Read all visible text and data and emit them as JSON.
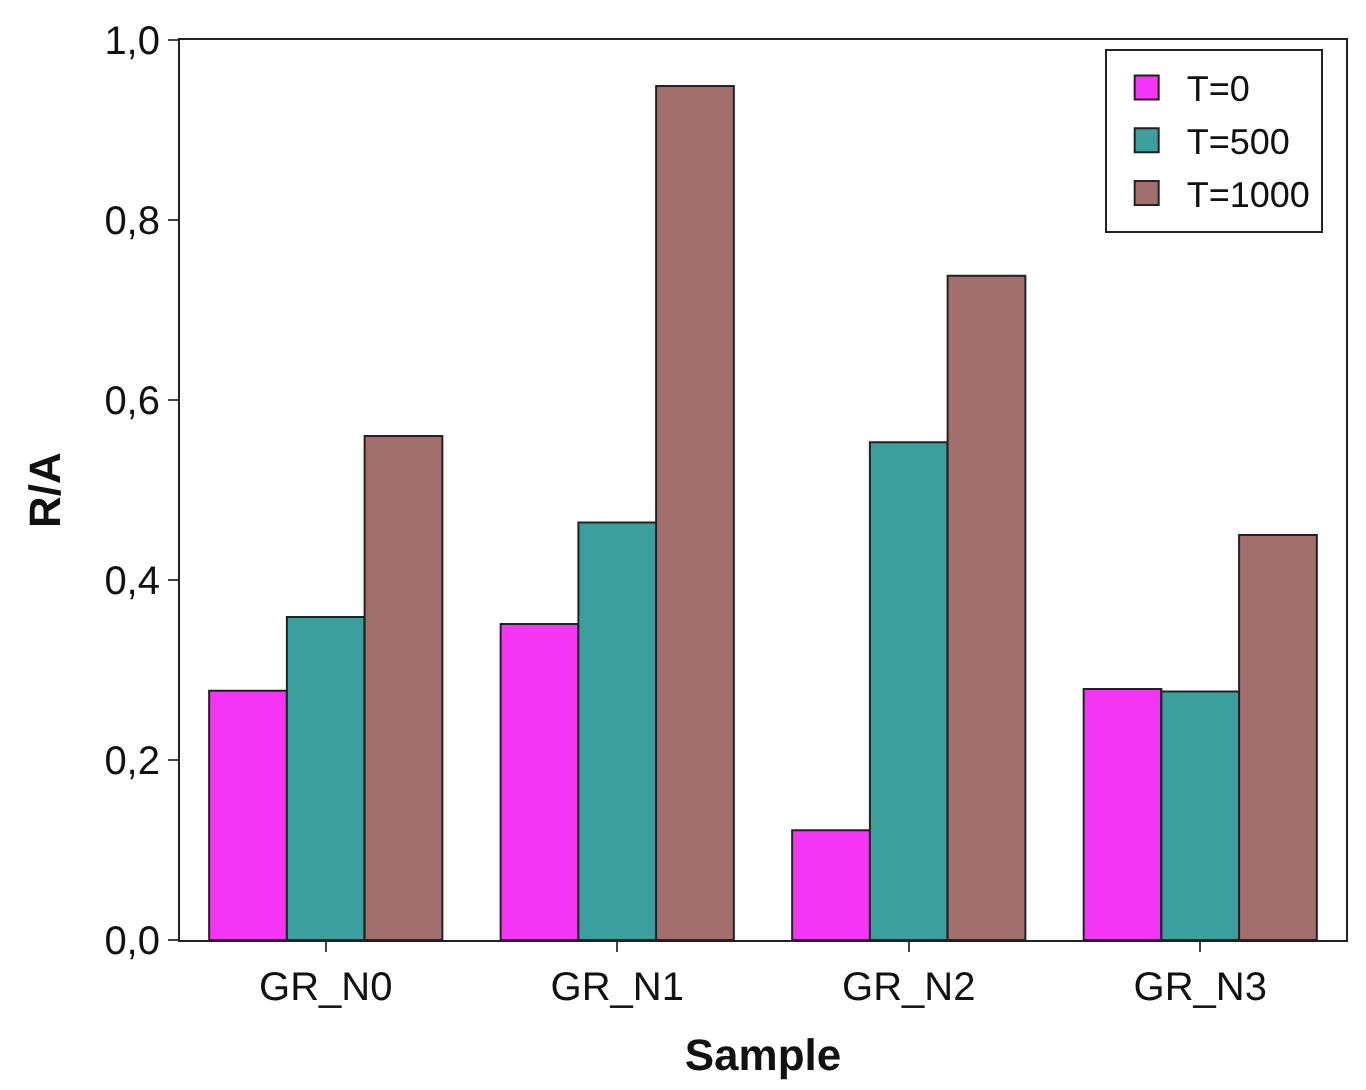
{
  "chart_data": {
    "type": "bar",
    "xlabel": "Sample",
    "ylabel": "R/A",
    "categories": [
      "GR_N0",
      "GR_N1",
      "GR_N2",
      "GR_N3"
    ],
    "series": [
      {
        "name": "T=0",
        "color": "#f535f5",
        "values": [
          0.277,
          0.351,
          0.122,
          0.279
        ]
      },
      {
        "name": "T=500",
        "color": "#3a9f9d",
        "values": [
          0.359,
          0.464,
          0.553,
          0.276
        ]
      },
      {
        "name": "T=1000",
        "color": "#a36f6d",
        "values": [
          0.56,
          0.949,
          0.738,
          0.45
        ]
      }
    ],
    "ylim": [
      0,
      1.0
    ],
    "yticks": [
      {
        "value": 0,
        "label": "0,0"
      },
      {
        "value": 0.2,
        "label": "0,2"
      },
      {
        "value": 0.4,
        "label": "0,4"
      },
      {
        "value": 0.6,
        "label": "0,6"
      },
      {
        "value": 0.8,
        "label": "0,8"
      },
      {
        "value": 1.0,
        "label": "1,0"
      }
    ],
    "legend": "top right"
  }
}
